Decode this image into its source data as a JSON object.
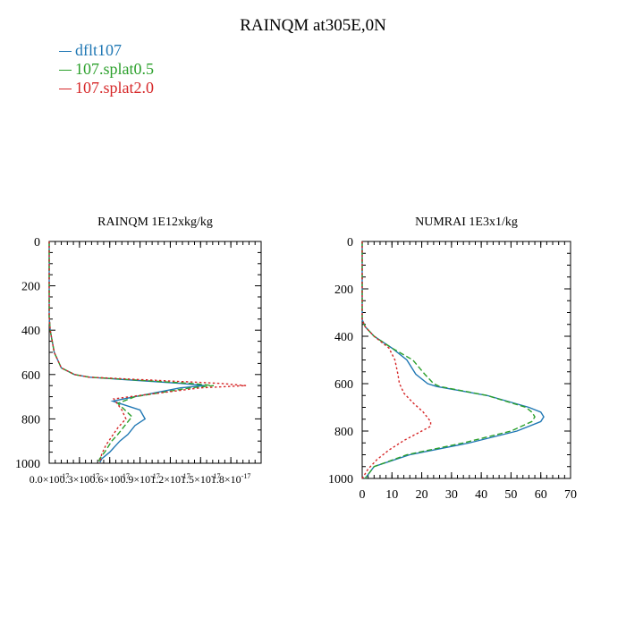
{
  "figure": {
    "title": "RAINQM at305E,0N"
  },
  "legend": [
    {
      "label": "dflt107",
      "color": "#1f77b4",
      "dash": "solid"
    },
    {
      "label": "107.splat0.5",
      "color": "#2ca02c",
      "dash": "dashed"
    },
    {
      "label": "107.splat2.0",
      "color": "#d62728",
      "dash": "dotted"
    }
  ],
  "chart_data": [
    {
      "type": "line",
      "title": "RAINQM  1E12xkg/kg",
      "xlabel": "",
      "ylabel": "",
      "xlim": [
        0,
        2.1e-17
      ],
      "ylim": [
        1000,
        0
      ],
      "xtick_labels": [
        "0.0×10",
        "0.3×10",
        "0.6×10",
        "0.9×10",
        "1.2×10",
        "1.5×10",
        "1.8×10"
      ],
      "xtick_exponents": [
        "-17",
        "-17",
        "-17",
        "-17",
        "-17",
        "-17",
        "-17"
      ],
      "xticks": [
        0,
        3e-18,
        6e-18,
        9e-18,
        1.2e-17,
        1.5e-17,
        1.8e-17
      ],
      "yticks": [
        0,
        200,
        400,
        600,
        800,
        1000
      ],
      "y_inverted": true,
      "series": [
        {
          "name": "dflt107",
          "color": "#1f77b4",
          "dash": "solid",
          "y": [
            0,
            340,
            400,
            500,
            570,
            600,
            612,
            640,
            650,
            660,
            700,
            720,
            760,
            800,
            830,
            870,
            900,
            950,
            980,
            1000
          ],
          "x": [
            0,
            0,
            1e-19,
            5e-19,
            1.2e-18,
            2.5e-18,
            4e-18,
            1.3e-17,
            1.54e-17,
            1.3e-17,
            8.5e-18,
            6.3e-18,
            9e-18,
            9.5e-18,
            8.5e-18,
            7.8e-18,
            7e-18,
            6e-18,
            5.2e-18,
            5e-18
          ]
        },
        {
          "name": "107.splat0.5",
          "color": "#2ca02c",
          "dash": "dashed",
          "y": [
            0,
            340,
            400,
            500,
            570,
            600,
            612,
            640,
            650,
            660,
            700,
            730,
            790,
            830,
            870,
            900,
            950,
            980,
            1000
          ],
          "x": [
            0,
            0,
            1e-19,
            5e-19,
            1.2e-18,
            2.5e-18,
            4e-18,
            1.4e-17,
            1.63e-17,
            1.4e-17,
            8.5e-18,
            6.8e-18,
            8.2e-18,
            7.5e-18,
            6.8e-18,
            6.2e-18,
            5.5e-18,
            5e-18,
            4.9e-18
          ]
        },
        {
          "name": "107.splat2.0",
          "color": "#d62728",
          "dash": "dotted",
          "y": [
            0,
            340,
            400,
            500,
            570,
            600,
            612,
            640,
            650,
            660,
            700,
            710,
            760,
            800,
            840,
            880,
            920,
            960,
            1000
          ],
          "x": [
            0,
            0,
            1e-19,
            5e-19,
            1.2e-18,
            2.5e-18,
            4e-18,
            1.7e-17,
            1.95e-17,
            1.5e-17,
            8e-18,
            6.4e-18,
            7.2e-18,
            7.6e-18,
            6.8e-18,
            6.2e-18,
            5.6e-18,
            5.2e-18,
            5e-18
          ]
        }
      ]
    },
    {
      "type": "line",
      "title": "NUMRAI  1E3x1/kg",
      "xlabel": "",
      "ylabel": "",
      "xlim": [
        0,
        70
      ],
      "ylim": [
        1000,
        0
      ],
      "xticks": [
        0,
        10,
        20,
        30,
        40,
        50,
        60,
        70
      ],
      "xtick_labels": [
        "0",
        "10",
        "20",
        "30",
        "40",
        "50",
        "60",
        "70"
      ],
      "yticks": [
        0,
        200,
        400,
        600,
        800,
        1000
      ],
      "y_inverted": true,
      "series": [
        {
          "name": "dflt107",
          "color": "#1f77b4",
          "dash": "solid",
          "y": [
            0,
            330,
            360,
            400,
            450,
            500,
            560,
            600,
            612,
            650,
            700,
            720,
            740,
            760,
            800,
            850,
            900,
            950,
            1000
          ],
          "x": [
            0,
            0,
            1,
            4,
            10,
            15,
            18,
            22,
            25,
            42,
            56,
            60,
            61,
            60,
            52,
            36,
            16,
            4,
            1
          ]
        },
        {
          "name": "107.splat0.5",
          "color": "#2ca02c",
          "dash": "dashed",
          "y": [
            0,
            330,
            360,
            400,
            450,
            500,
            560,
            600,
            612,
            650,
            700,
            720,
            740,
            760,
            800,
            850,
            900,
            950,
            1000
          ],
          "x": [
            0,
            0,
            1,
            4,
            10,
            17,
            21,
            24,
            26,
            42,
            55,
            57,
            58,
            57,
            50,
            34,
            15,
            4,
            1
          ]
        },
        {
          "name": "107.splat2.0",
          "color": "#d62728",
          "dash": "dotted",
          "y": [
            0,
            330,
            360,
            400,
            450,
            500,
            560,
            600,
            612,
            640,
            680,
            720,
            760,
            780,
            800,
            840,
            880,
            920,
            960,
            1000
          ],
          "x": [
            0,
            0,
            1,
            4,
            9,
            11,
            12,
            12.5,
            13,
            14,
            17,
            20.5,
            23,
            23,
            20,
            14,
            9,
            5,
            2,
            0
          ]
        }
      ]
    }
  ]
}
